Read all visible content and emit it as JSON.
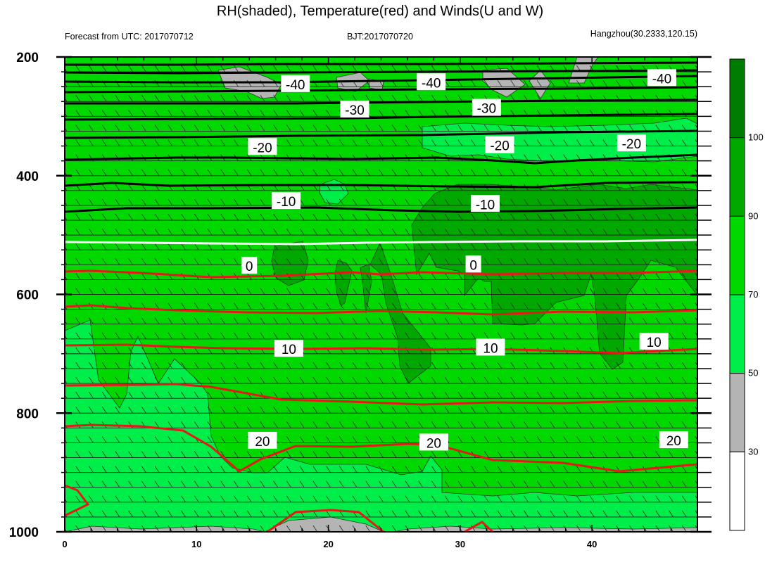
{
  "chart_data": {
    "type": "contour",
    "title": "RH(shaded), Temperature(red) and Winds(U and W)",
    "subtitle_left": "Forecast from UTC: 2017070712",
    "subtitle_center": "BJT:2017070720",
    "subtitle_right": "Hangzhou(30.2333,120.15)",
    "x_ticks": [
      0,
      10,
      20,
      30,
      40
    ],
    "xlim": [
      0,
      48
    ],
    "y_ticks": [
      200,
      400,
      600,
      800,
      1000
    ],
    "ylim": [
      200,
      1000
    ],
    "y_inverted": true,
    "colorbar": {
      "levels": [
        30,
        50,
        70,
        90,
        100
      ],
      "colors": [
        "#ffffff",
        "#b4b4b4",
        "#00ee4a",
        "#00d800",
        "#00a800",
        "#007c00"
      ]
    },
    "contour_labels": [
      {
        "text": "-40",
        "x": 17.5,
        "y": 246
      },
      {
        "text": "-40",
        "x": 27.8,
        "y": 243
      },
      {
        "text": "-40",
        "x": 45.3,
        "y": 236
      },
      {
        "text": "-30",
        "x": 22.0,
        "y": 289
      },
      {
        "text": "-30",
        "x": 32.0,
        "y": 286
      },
      {
        "text": "-20",
        "x": 15.0,
        "y": 352
      },
      {
        "text": "-20",
        "x": 33.0,
        "y": 349
      },
      {
        "text": "-20",
        "x": 43.0,
        "y": 346
      },
      {
        "text": "-10",
        "x": 16.8,
        "y": 443
      },
      {
        "text": "-10",
        "x": 31.9,
        "y": 448
      },
      {
        "text": "0",
        "x": 14.0,
        "y": 552
      },
      {
        "text": "0",
        "x": 31.0,
        "y": 550
      },
      {
        "text": "10",
        "x": 17.0,
        "y": 692
      },
      {
        "text": "10",
        "x": 32.3,
        "y": 690
      },
      {
        "text": "10",
        "x": 44.7,
        "y": 680
      },
      {
        "text": "20",
        "x": 15.0,
        "y": 847
      },
      {
        "text": "20",
        "x": 28.0,
        "y": 850
      },
      {
        "text": "20",
        "x": 46.2,
        "y": 846
      }
    ],
    "temperature_isotherms_C": [
      -40,
      -30,
      -20,
      -10,
      0,
      10,
      20
    ],
    "wind_levels_hPa": [
      200,
      225,
      250,
      275,
      300,
      325,
      350,
      375,
      400,
      425,
      450,
      475,
      500,
      525,
      550,
      575,
      600,
      625,
      650,
      675,
      700,
      725,
      750,
      775,
      800,
      825,
      850,
      875,
      900,
      925,
      950,
      975,
      1000
    ],
    "grid": false
  }
}
